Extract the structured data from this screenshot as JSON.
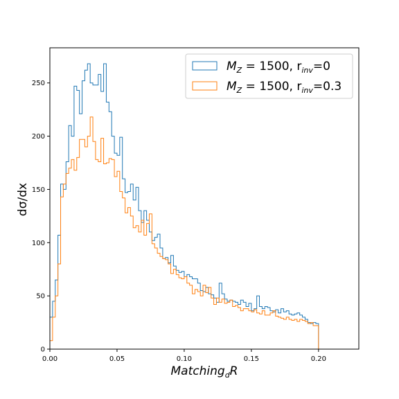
{
  "chart_data": {
    "type": "histogram-step",
    "xlabel_main": "Matching",
    "xlabel_sub": "d",
    "xlabel_tail": "R",
    "ylabel": "dσ/dx",
    "xlim": [
      0.0,
      0.23
    ],
    "ylim": [
      0,
      283
    ],
    "xticks": [
      "0.00",
      "0.05",
      "0.10",
      "0.15",
      "0.20"
    ],
    "yticks": [
      "0",
      "50",
      "100",
      "150",
      "200",
      "250"
    ],
    "grid": false,
    "legend_placement": "top-right",
    "bin_edges_start": 0.0,
    "bin_width": 0.002,
    "series": [
      {
        "name_prefix": "M",
        "name_prefix_sub": "Z",
        "name_mid": " = 1500, r",
        "name_mid_sub": "inv",
        "name_suffix": "=0",
        "color": "#1f77b4",
        "values": [
          30,
          45,
          65,
          107,
          155,
          150,
          176,
          210,
          200,
          247,
          243,
          221,
          252,
          262,
          268,
          250,
          248,
          248,
          258,
          242,
          268,
          232,
          223,
          200,
          184,
          182,
          199,
          160,
          147,
          148,
          155,
          140,
          152,
          130,
          119,
          130,
          121,
          110,
          102,
          105,
          108,
          95,
          85,
          86,
          81,
          88,
          78,
          74,
          72,
          73,
          68,
          70,
          68,
          66,
          66,
          62,
          55,
          54,
          58,
          52,
          51,
          48,
          44,
          62,
          52,
          47,
          45,
          46,
          45,
          44,
          42,
          46,
          44,
          40,
          43,
          36,
          38,
          50,
          40,
          38,
          40,
          39,
          36,
          35,
          37,
          34,
          38,
          35,
          36,
          33,
          32,
          33,
          34,
          32,
          30,
          28,
          25,
          24,
          25,
          24
        ]
      },
      {
        "name_prefix": "M",
        "name_prefix_sub": "Z",
        "name_mid": " = 1500, r",
        "name_mid_sub": "inv",
        "name_suffix": "=0.3",
        "color": "#ff7f0e",
        "values": [
          8,
          30,
          50,
          80,
          143,
          155,
          165,
          170,
          178,
          168,
          180,
          197,
          197,
          190,
          200,
          218,
          195,
          178,
          176,
          198,
          174,
          175,
          179,
          178,
          162,
          167,
          148,
          142,
          128,
          133,
          125,
          114,
          116,
          110,
          121,
          107,
          118,
          127,
          99,
          95,
          90,
          87,
          85,
          84,
          80,
          71,
          75,
          70,
          67,
          66,
          68,
          62,
          60,
          52,
          56,
          54,
          50,
          60,
          53,
          58,
          48,
          42,
          48,
          44,
          47,
          43,
          44,
          46,
          40,
          41,
          39,
          36,
          38,
          38,
          36,
          35,
          37,
          34,
          33,
          36,
          32,
          32,
          34,
          36,
          31,
          30,
          29,
          28,
          30,
          28,
          27,
          28,
          26,
          28,
          27,
          26,
          24,
          25,
          22,
          22
        ]
      }
    ]
  }
}
